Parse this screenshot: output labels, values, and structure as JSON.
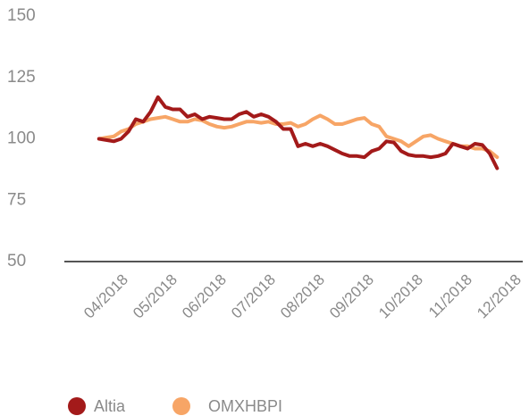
{
  "chart_data": {
    "type": "line",
    "x": [
      3.45,
      3.6,
      3.75,
      3.9,
      4.05,
      4.2,
      4.35,
      4.5,
      4.65,
      4.8,
      4.95,
      5.1,
      5.25,
      5.4,
      5.55,
      5.7,
      5.85,
      6,
      6.15,
      6.3,
      6.45,
      6.6,
      6.75,
      6.9,
      7.05,
      7.2,
      7.35,
      7.5,
      7.65,
      7.8,
      7.95,
      8.1,
      8.25,
      8.4,
      8.55,
      8.7,
      8.85,
      9,
      9.15,
      9.3,
      9.45,
      9.6,
      9.75,
      9.9,
      10.05,
      10.2,
      10.35,
      10.5,
      10.65,
      10.8,
      10.95,
      11.1,
      11.25,
      11.4,
      11.55
    ],
    "series": [
      {
        "name": "Altia",
        "color": "#a31a1a",
        "values": [
          100,
          99.5,
          99,
          100,
          103,
          108,
          107,
          111,
          117,
          113,
          112,
          112,
          109,
          110,
          108,
          109,
          108.5,
          108,
          108,
          110,
          111,
          109,
          110,
          109,
          107,
          104,
          104,
          97,
          98,
          97,
          98,
          97,
          95.5,
          94,
          93,
          93,
          92.5,
          95,
          96,
          99,
          98.5,
          95,
          93.5,
          93,
          93,
          92.5,
          93,
          94,
          98,
          97,
          96,
          98,
          97.5,
          94,
          88
        ]
      },
      {
        "name": "OMXHBPI",
        "color": "#f7a566",
        "values": [
          100,
          100.5,
          101,
          103,
          104,
          106,
          107,
          108,
          108.5,
          109,
          108,
          107,
          107,
          108,
          107.5,
          106,
          105,
          104.5,
          105,
          106,
          107,
          107,
          106.5,
          107,
          106,
          106,
          106.5,
          105,
          106,
          108,
          109.5,
          108,
          106,
          106,
          107,
          108,
          108.5,
          106,
          105,
          101,
          100,
          99,
          97,
          99,
          101,
          101.5,
          100,
          99,
          98,
          97,
          97,
          96,
          96,
          95,
          92.5
        ]
      }
    ],
    "xlim": [
      2.3,
      12.2
    ],
    "xticks": [
      {
        "value": 4,
        "label": "04/2018"
      },
      {
        "value": 5,
        "label": "05/2018"
      },
      {
        "value": 6,
        "label": "06/2018"
      },
      {
        "value": 7,
        "label": "07/2018"
      },
      {
        "value": 8,
        "label": "08/2018"
      },
      {
        "value": 9,
        "label": "09/2018"
      },
      {
        "value": 10,
        "label": "10/2018"
      },
      {
        "value": 11,
        "label": "11/2018"
      },
      {
        "value": 12,
        "label": "12/2018"
      }
    ],
    "ylim": [
      50,
      150
    ],
    "yticks": [
      50,
      75,
      100,
      125,
      150
    ],
    "grid": false
  }
}
